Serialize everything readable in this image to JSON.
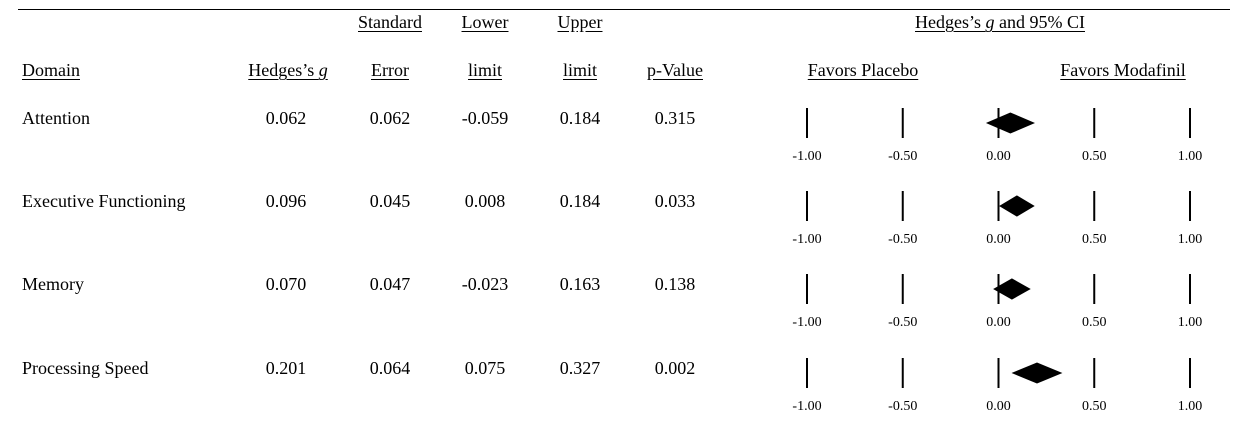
{
  "headers": {
    "domain": "Domain",
    "hedges_g": "Hedges’s ",
    "hedges_g_italic": "g",
    "standard": "Standard",
    "error": "Error",
    "lower": "Lower",
    "lower_limit": "limit",
    "upper": "Upper",
    "upper_limit": "limit",
    "p_value": "p-Value",
    "forest_title_pre": "Hedges’s ",
    "forest_title_italic": "g",
    "forest_title_post": " and 95% CI",
    "favors_left": "Favors Placebo",
    "favors_right": "Favors Modafinil"
  },
  "rows": [
    {
      "domain": "Attention",
      "g": "0.062",
      "se": "0.062",
      "lower": "-0.059",
      "upper": "0.184",
      "p": "0.315"
    },
    {
      "domain": "Executive Functioning",
      "g": "0.096",
      "se": "0.045",
      "lower": "0.008",
      "upper": "0.184",
      "p": "0.033"
    },
    {
      "domain": "Memory",
      "g": "0.070",
      "se": "0.047",
      "lower": "-0.023",
      "upper": "0.163",
      "p": "0.138"
    },
    {
      "domain": "Processing Speed",
      "g": "0.201",
      "se": "0.064",
      "lower": "0.075",
      "upper": "0.327",
      "p": "0.002"
    }
  ],
  "chart_data": {
    "type": "forest",
    "title": "Hedges’s g and 95% CI",
    "xlabel_left": "Favors Placebo",
    "xlabel_right": "Favors Modafinil",
    "xlim": [
      -1.0,
      1.0
    ],
    "ticks": [
      -1.0,
      -0.5,
      0.0,
      0.5,
      1.0
    ],
    "tick_labels": [
      "-1.00",
      "-0.50",
      "0.00",
      "0.50",
      "1.00"
    ],
    "categories": [
      "Attention",
      "Executive Functioning",
      "Memory",
      "Processing Speed"
    ],
    "estimates": [
      0.062,
      0.096,
      0.07,
      0.201
    ],
    "lower": [
      -0.059,
      0.008,
      -0.023,
      0.075
    ],
    "upper": [
      0.184,
      0.184,
      0.163,
      0.327
    ]
  }
}
